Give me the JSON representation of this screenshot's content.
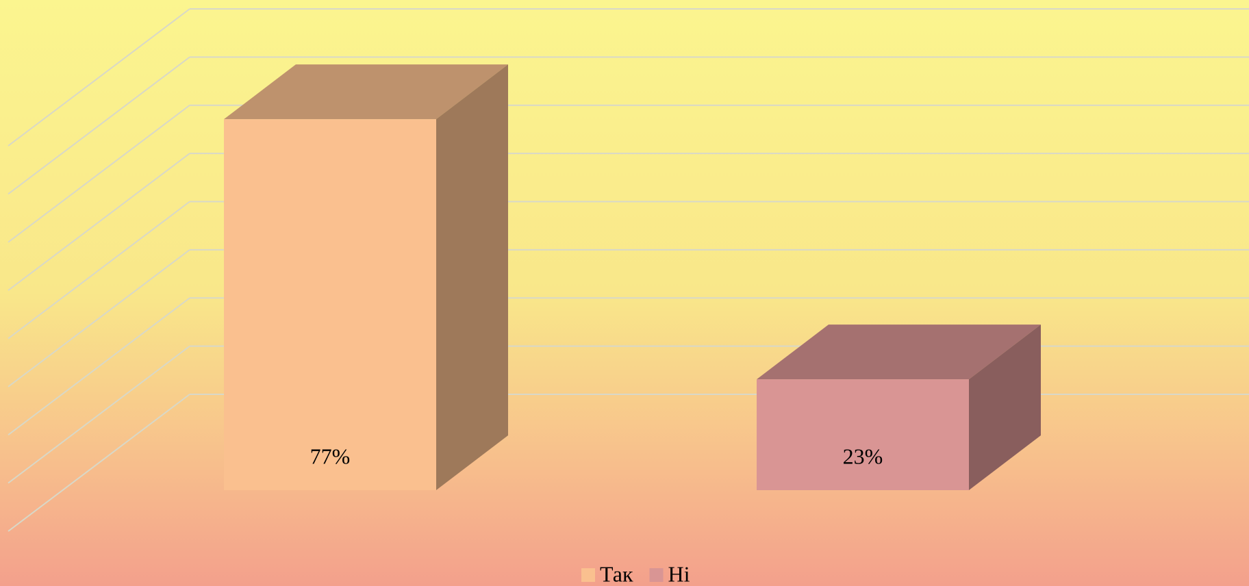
{
  "chart_data": {
    "type": "bar3d",
    "series": [
      {
        "name": "Так",
        "color": "#fac08f",
        "values": [
          77
        ],
        "value_labels": [
          "77%"
        ]
      },
      {
        "name": "Ні",
        "color": "#d99594",
        "values": [
          23
        ],
        "value_labels": [
          "23%"
        ]
      }
    ],
    "ylim": [
      0,
      80
    ],
    "yticks": [
      0,
      10,
      20,
      30,
      40,
      50,
      60,
      70,
      80
    ],
    "grid": true,
    "legend": "bottom"
  }
}
